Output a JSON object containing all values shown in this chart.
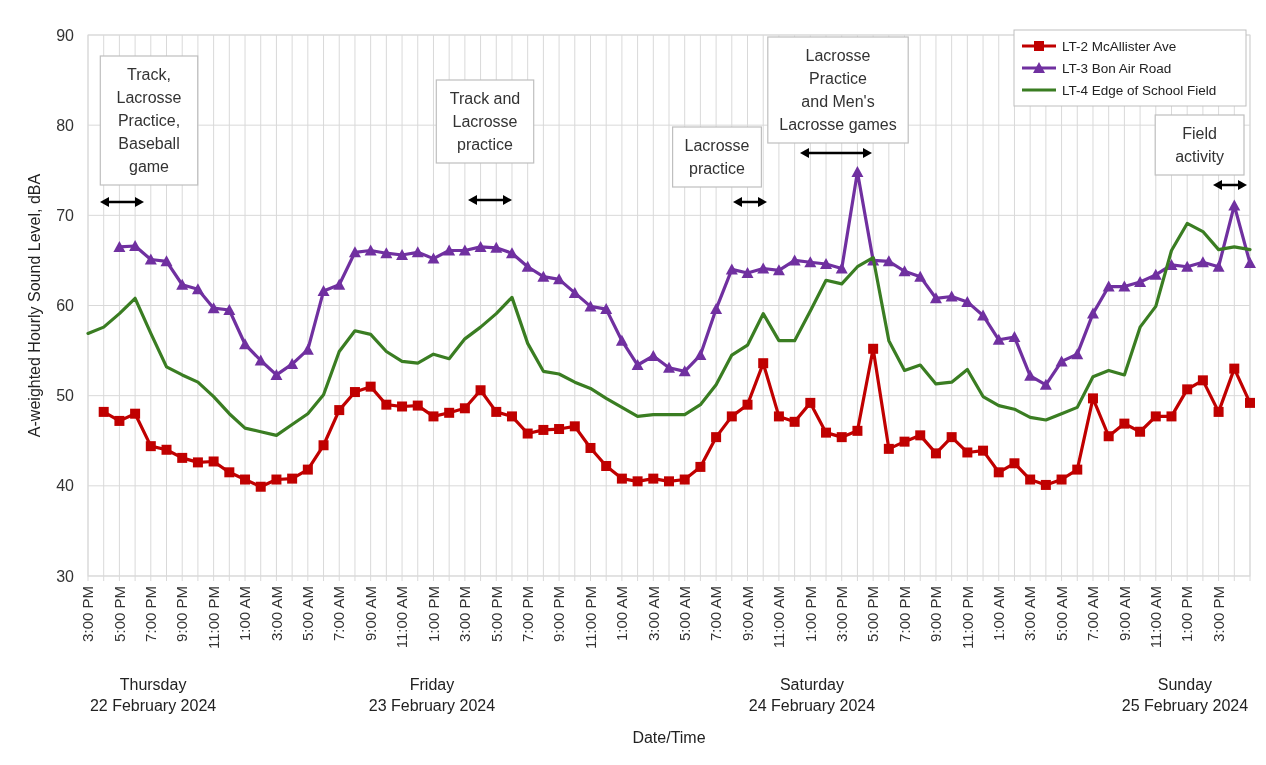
{
  "chart_data": {
    "type": "line",
    "ylabel": "A-weighted Hourly Sound Level, dBA",
    "xlabel": "Date/Time",
    "x": [
      "2024-02-22T15:00",
      "2024-02-22T16:00",
      "2024-02-22T17:00",
      "2024-02-22T18:00",
      "2024-02-22T19:00",
      "2024-02-22T20:00",
      "2024-02-22T21:00",
      "2024-02-22T22:00",
      "2024-02-22T23:00",
      "2024-02-23T00:00",
      "2024-02-23T01:00",
      "2024-02-23T02:00",
      "2024-02-23T03:00",
      "2024-02-23T04:00",
      "2024-02-23T05:00",
      "2024-02-23T06:00",
      "2024-02-23T07:00",
      "2024-02-23T08:00",
      "2024-02-23T09:00",
      "2024-02-23T10:00",
      "2024-02-23T11:00",
      "2024-02-23T12:00",
      "2024-02-23T13:00",
      "2024-02-23T14:00",
      "2024-02-23T15:00",
      "2024-02-23T16:00",
      "2024-02-23T17:00",
      "2024-02-23T18:00",
      "2024-02-23T19:00",
      "2024-02-23T20:00",
      "2024-02-23T21:00",
      "2024-02-23T22:00",
      "2024-02-23T23:00",
      "2024-02-24T00:00",
      "2024-02-24T01:00",
      "2024-02-24T02:00",
      "2024-02-24T03:00",
      "2024-02-24T04:00",
      "2024-02-24T05:00",
      "2024-02-24T06:00",
      "2024-02-24T07:00",
      "2024-02-24T08:00",
      "2024-02-24T09:00",
      "2024-02-24T10:00",
      "2024-02-24T11:00",
      "2024-02-24T12:00",
      "2024-02-24T13:00",
      "2024-02-24T14:00",
      "2024-02-24T15:00",
      "2024-02-24T16:00",
      "2024-02-24T17:00",
      "2024-02-24T18:00",
      "2024-02-24T19:00",
      "2024-02-24T20:00",
      "2024-02-24T21:00",
      "2024-02-24T22:00",
      "2024-02-24T23:00",
      "2024-02-25T00:00",
      "2024-02-25T01:00",
      "2024-02-25T02:00",
      "2024-02-25T03:00",
      "2024-02-25T04:00",
      "2024-02-25T05:00",
      "2024-02-25T06:00",
      "2024-02-25T07:00",
      "2024-02-25T08:00",
      "2024-02-25T09:00",
      "2024-02-25T10:00",
      "2024-02-25T11:00",
      "2024-02-25T12:00",
      "2024-02-25T13:00",
      "2024-02-25T14:00",
      "2024-02-25T15:00",
      "2024-02-25T16:00",
      "2024-02-25T17:00"
    ],
    "series": [
      {
        "name": "LT-2 McAllister Ave",
        "color": "#c00000",
        "marker": "square",
        "values": [
          null,
          48.2,
          47.2,
          48.0,
          44.4,
          44.0,
          43.1,
          42.6,
          42.7,
          41.5,
          40.7,
          39.9,
          40.7,
          40.8,
          41.8,
          44.5,
          48.4,
          50.4,
          51.0,
          49.0,
          48.8,
          48.9,
          47.7,
          48.1,
          48.6,
          50.6,
          48.2,
          47.7,
          45.8,
          46.2,
          46.3,
          46.6,
          44.2,
          42.2,
          40.8,
          40.5,
          40.8,
          40.5,
          40.7,
          42.1,
          45.4,
          47.7,
          49.0,
          53.6,
          47.7,
          47.1,
          49.2,
          45.9,
          45.4,
          46.1,
          55.2,
          44.1,
          44.9,
          45.6,
          43.6,
          45.4,
          43.7,
          43.9,
          41.5,
          42.5,
          40.7,
          40.1,
          40.7,
          41.8,
          49.7,
          45.5,
          46.9,
          46.0,
          47.7,
          47.7,
          50.7,
          51.7,
          48.2,
          53.0,
          49.2
        ]
      },
      {
        "name": "LT-3 Bon Air Road",
        "color": "#7030a0",
        "marker": "triangle",
        "values": [
          null,
          null,
          66.5,
          66.6,
          65.1,
          64.9,
          62.3,
          61.8,
          59.7,
          59.5,
          55.7,
          53.9,
          52.3,
          53.5,
          55.1,
          61.6,
          62.3,
          65.9,
          66.1,
          65.8,
          65.6,
          65.9,
          65.2,
          66.1,
          66.1,
          66.5,
          66.4,
          65.8,
          64.3,
          63.2,
          62.9,
          61.4,
          59.9,
          59.6,
          56.1,
          53.4,
          54.4,
          53.1,
          52.7,
          54.5,
          59.6,
          64.0,
          63.6,
          64.1,
          63.9,
          65.0,
          64.8,
          64.6,
          64.1,
          74.8,
          65.0,
          64.9,
          63.8,
          63.2,
          60.8,
          61.0,
          60.4,
          58.9,
          56.2,
          56.5,
          52.2,
          51.2,
          53.8,
          54.6,
          59.1,
          62.1,
          62.1,
          62.6,
          63.4,
          64.5,
          64.3,
          64.8,
          64.3,
          71.1,
          64.7
        ]
      },
      {
        "name": "LT-4 Edge of School Field",
        "color": "#3a7d22",
        "marker": "none",
        "values": [
          56.9,
          57.6,
          59.1,
          60.8,
          56.9,
          53.2,
          52.3,
          51.5,
          49.9,
          48.0,
          46.4,
          46.0,
          45.6,
          46.8,
          48.0,
          50.1,
          54.9,
          57.2,
          56.8,
          54.9,
          53.8,
          53.6,
          54.6,
          54.1,
          56.3,
          57.6,
          59.1,
          60.9,
          55.8,
          52.7,
          52.4,
          51.5,
          50.8,
          49.7,
          48.7,
          47.7,
          47.9,
          47.9,
          47.9,
          49.0,
          51.2,
          54.5,
          55.6,
          59.1,
          56.1,
          56.1,
          59.4,
          62.8,
          62.4,
          64.3,
          65.3,
          56.1,
          52.8,
          53.4,
          51.3,
          51.5,
          52.9,
          49.9,
          48.9,
          48.5,
          47.6,
          47.3,
          48.0,
          48.7,
          52.1,
          52.8,
          52.3,
          57.6,
          59.9,
          66.1,
          69.1,
          68.2,
          66.2,
          66.5,
          66.2
        ]
      }
    ],
    "xlim": [
      "2024-02-22T15:00",
      "2024-02-25T17:00"
    ],
    "xticks": [
      {
        "value": "2024-02-22T15:00",
        "label": "3:00 PM"
      },
      {
        "value": "2024-02-22T16:00",
        "label": null
      },
      {
        "value": "2024-02-22T17:00",
        "label": "5:00 PM"
      },
      {
        "value": "2024-02-22T18:00",
        "label": null
      },
      {
        "value": "2024-02-22T19:00",
        "label": "7:00 PM"
      },
      {
        "value": "2024-02-22T20:00",
        "label": null
      },
      {
        "value": "2024-02-22T21:00",
        "label": "9:00 PM"
      },
      {
        "value": "2024-02-22T22:00",
        "label": null
      },
      {
        "value": "2024-02-22T23:00",
        "label": "11:00 PM"
      },
      {
        "value": "2024-02-23T00:00",
        "label": null
      },
      {
        "value": "2024-02-23T01:00",
        "label": "1:00 AM"
      },
      {
        "value": "2024-02-23T02:00",
        "label": null
      },
      {
        "value": "2024-02-23T03:00",
        "label": "3:00 AM"
      },
      {
        "value": "2024-02-23T04:00",
        "label": null
      },
      {
        "value": "2024-02-23T05:00",
        "label": "5:00 AM"
      },
      {
        "value": "2024-02-23T06:00",
        "label": null
      },
      {
        "value": "2024-02-23T07:00",
        "label": "7:00 AM"
      },
      {
        "value": "2024-02-23T08:00",
        "label": null
      },
      {
        "value": "2024-02-23T09:00",
        "label": "9:00 AM"
      },
      {
        "value": "2024-02-23T10:00",
        "label": null
      },
      {
        "value": "2024-02-23T11:00",
        "label": "11:00 AM"
      },
      {
        "value": "2024-02-23T12:00",
        "label": null
      },
      {
        "value": "2024-02-23T13:00",
        "label": "1:00 PM"
      },
      {
        "value": "2024-02-23T14:00",
        "label": null
      },
      {
        "value": "2024-02-23T15:00",
        "label": "3:00 PM"
      },
      {
        "value": "2024-02-23T16:00",
        "label": null
      },
      {
        "value": "2024-02-23T17:00",
        "label": "5:00 PM"
      },
      {
        "value": "2024-02-23T18:00",
        "label": null
      },
      {
        "value": "2024-02-23T19:00",
        "label": "7:00 PM"
      },
      {
        "value": "2024-02-23T20:00",
        "label": null
      },
      {
        "value": "2024-02-23T21:00",
        "label": "9:00 PM"
      },
      {
        "value": "2024-02-23T22:00",
        "label": null
      },
      {
        "value": "2024-02-23T23:00",
        "label": "11:00 PM"
      },
      {
        "value": "2024-02-24T00:00",
        "label": null
      },
      {
        "value": "2024-02-24T01:00",
        "label": "1:00 AM"
      },
      {
        "value": "2024-02-24T02:00",
        "label": null
      },
      {
        "value": "2024-02-24T03:00",
        "label": "3:00 AM"
      },
      {
        "value": "2024-02-24T04:00",
        "label": null
      },
      {
        "value": "2024-02-24T05:00",
        "label": "5:00 AM"
      },
      {
        "value": "2024-02-24T06:00",
        "label": null
      },
      {
        "value": "2024-02-24T07:00",
        "label": "7:00 AM"
      },
      {
        "value": "2024-02-24T08:00",
        "label": null
      },
      {
        "value": "2024-02-24T09:00",
        "label": "9:00 AM"
      },
      {
        "value": "2024-02-24T10:00",
        "label": null
      },
      {
        "value": "2024-02-24T11:00",
        "label": "11:00 AM"
      },
      {
        "value": "2024-02-24T12:00",
        "label": null
      },
      {
        "value": "2024-02-24T13:00",
        "label": "1:00 PM"
      },
      {
        "value": "2024-02-24T14:00",
        "label": null
      },
      {
        "value": "2024-02-24T15:00",
        "label": "3:00 PM"
      },
      {
        "value": "2024-02-24T16:00",
        "label": null
      },
      {
        "value": "2024-02-24T17:00",
        "label": "5:00 PM"
      },
      {
        "value": "2024-02-24T18:00",
        "label": null
      },
      {
        "value": "2024-02-24T19:00",
        "label": "7:00 PM"
      },
      {
        "value": "2024-02-24T20:00",
        "label": null
      },
      {
        "value": "2024-02-24T21:00",
        "label": "9:00 PM"
      },
      {
        "value": "2024-02-24T22:00",
        "label": null
      },
      {
        "value": "2024-02-24T23:00",
        "label": "11:00 PM"
      },
      {
        "value": "2024-02-25T00:00",
        "label": null
      },
      {
        "value": "2024-02-25T01:00",
        "label": "1:00 AM"
      },
      {
        "value": "2024-02-25T02:00",
        "label": null
      },
      {
        "value": "2024-02-25T03:00",
        "label": "3:00 AM"
      },
      {
        "value": "2024-02-25T04:00",
        "label": null
      },
      {
        "value": "2024-02-25T05:00",
        "label": "5:00 AM"
      },
      {
        "value": "2024-02-25T06:00",
        "label": null
      },
      {
        "value": "2024-02-25T07:00",
        "label": "7:00 AM"
      },
      {
        "value": "2024-02-25T08:00",
        "label": null
      },
      {
        "value": "2024-02-25T09:00",
        "label": "9:00 AM"
      },
      {
        "value": "2024-02-25T10:00",
        "label": null
      },
      {
        "value": "2024-02-25T11:00",
        "label": "11:00 AM"
      },
      {
        "value": "2024-02-25T12:00",
        "label": null
      },
      {
        "value": "2024-02-25T13:00",
        "label": "1:00 PM"
      },
      {
        "value": "2024-02-25T14:00",
        "label": null
      },
      {
        "value": "2024-02-25T15:00",
        "label": "3:00 PM"
      },
      {
        "value": "2024-02-25T16:00",
        "label": null
      },
      {
        "value": "2024-02-25T17:00",
        "label": null
      }
    ],
    "ylim": [
      30,
      90
    ],
    "yticks": [
      30,
      40,
      50,
      60,
      70,
      80,
      90
    ],
    "grid": true,
    "legend": "top right",
    "annotations": [
      "Track,\nLacrosse\nPractice,\nBaseball\ngame",
      "Track and\nLacrosse\npractice",
      "Lacrosse\npractice",
      "Lacrosse\nPractice\nand Men's\nLacrosse games",
      "Field\nactivity",
      "Thursday\n22 February 2024",
      "Friday\n23 February 2024",
      "Saturday\n24 February 2024",
      "Sunday\n25 February 2024"
    ]
  }
}
